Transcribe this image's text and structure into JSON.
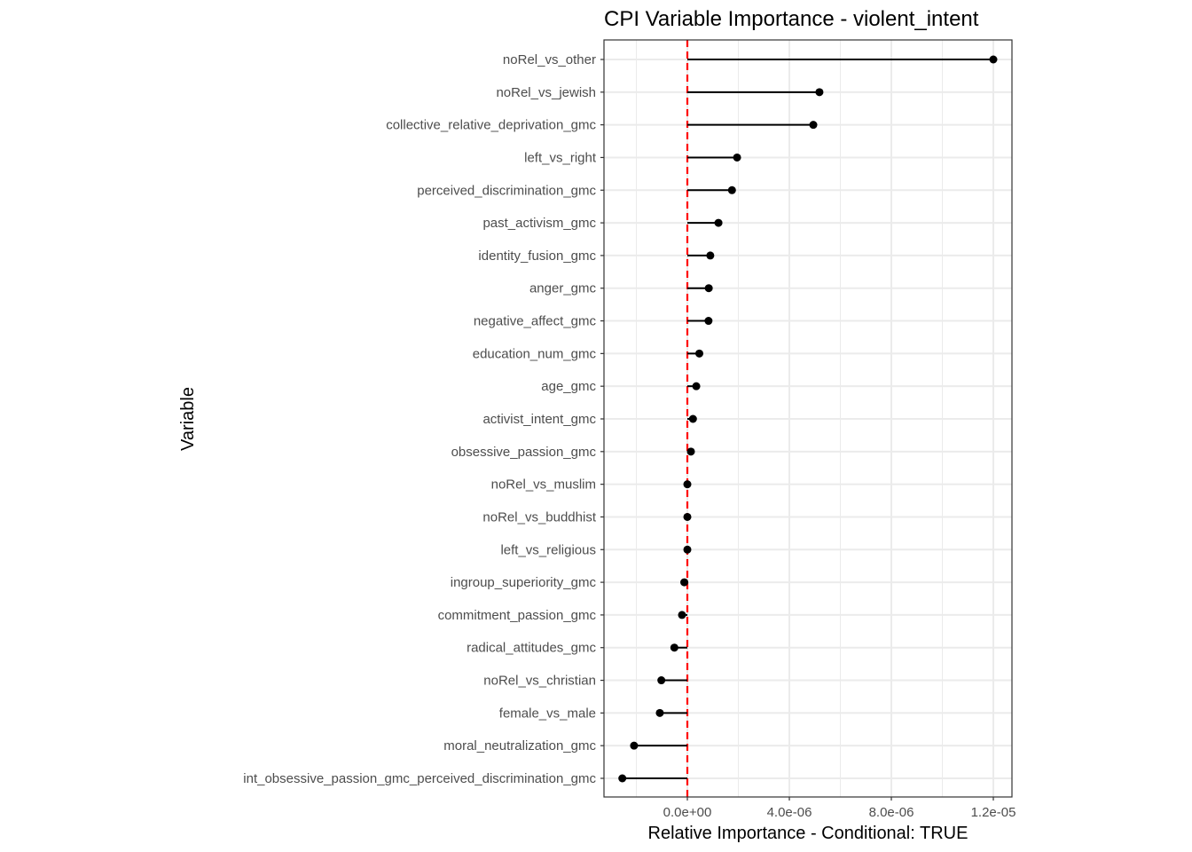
{
  "chart_data": {
    "type": "lollipop",
    "title": "CPI Variable Importance - violent_intent",
    "xlabel": "Relative Importance - Conditional: TRUE",
    "ylabel": "Variable",
    "xlim": [
      -3.25e-06,
      1.26e-05
    ],
    "xticks": [
      0,
      4e-06,
      8e-06,
      1.2e-05
    ],
    "xtick_labels": [
      "0.0e+00",
      "4.0e-06",
      "8.0e-06",
      "1.2e-05"
    ],
    "minor_xticks": [
      -2e-06,
      2e-06,
      6e-06,
      1e-05
    ],
    "reference_line": {
      "x": 0,
      "style": "dashed",
      "color": "#ff0000"
    },
    "grid": true,
    "categories": [
      "noRel_vs_other",
      "noRel_vs_jewish",
      "collective_relative_deprivation_gmc",
      "left_vs_right",
      "perceived_discrimination_gmc",
      "past_activism_gmc",
      "identity_fusion_gmc",
      "anger_gmc",
      "negative_affect_gmc",
      "education_num_gmc",
      "age_gmc",
      "activist_intent_gmc",
      "obsessive_passion_gmc",
      "noRel_vs_muslim",
      "noRel_vs_buddhist",
      "left_vs_religious",
      "ingroup_superiority_gmc",
      "commitment_passion_gmc",
      "radical_attitudes_gmc",
      "noRel_vs_christian",
      "female_vs_male",
      "moral_neutralization_gmc",
      "int_obsessive_passion_gmc_perceived_discrimination_gmc"
    ],
    "values": [
      1.2e-05,
      5.18e-06,
      4.94e-06,
      1.95e-06,
      1.75e-06,
      1.22e-06,
      9e-07,
      8.4e-07,
      8.3e-07,
      4.7e-07,
      3.5e-07,
      2.2e-07,
      1.4e-07,
      0.0,
      0.0,
      0.0,
      -1.2e-07,
      -2.1e-07,
      -5.1e-07,
      -1.02e-06,
      -1.08e-06,
      -2.09e-06,
      -2.55e-06
    ],
    "colors": {
      "point": "#000000",
      "segment": "#000000",
      "reference": "#ff0000",
      "grid": "#ebebeb",
      "border": "#333333"
    }
  }
}
